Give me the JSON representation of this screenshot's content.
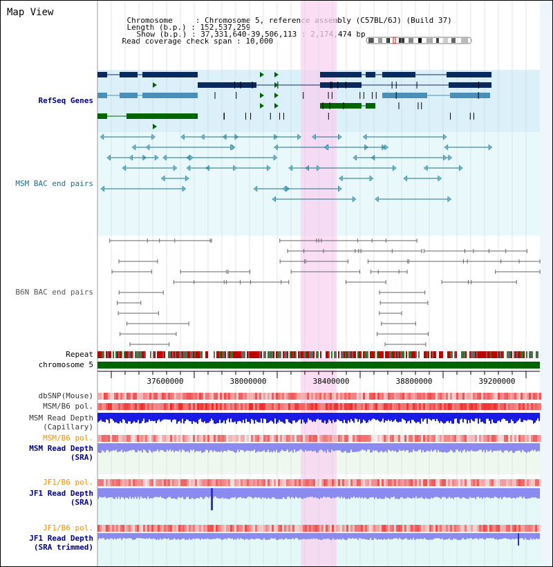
{
  "view_title": "Map View",
  "info": {
    "chromosome_label": "Chromosome",
    "chromosome_value": "Chromosome 5, reference assembly (C57BL/6J) (Build 37)",
    "length_label": "Length (b.p.)",
    "length_value": "152,537,259",
    "show_label": "Show (b.p.)",
    "show_value": "37,331,640-39,506,113 : 2,174,474 bp",
    "coverage_label": "Read coverage check span",
    "coverage_value": "10,000"
  },
  "tracks": {
    "refseq": "RefSeq Genes",
    "msm_bac": "MSM BAC end pairs",
    "b6n_bac": "B6N BAC end pairs",
    "repeat": "Repeat",
    "chromosome": "chromosome 5",
    "dbsnp": "dbSNP(Mouse)",
    "msm_b6_pol_1": "MSM/B6 pol.",
    "msm_read_depth_cap": "MSM Read Depth",
    "capillary": "(Capillary)",
    "msm_b6_pol_2": "MSM/B6 pol.",
    "msm_read_depth_sra": "MSM Read Depth",
    "sra_1": "(SRA)",
    "jf1_b6_pol_1": "JF1/B6 pol.",
    "jf1_read_depth_sra": "JF1 Read Depth",
    "sra_2": "(SRA)",
    "jf1_b6_pol_2": "JF1/B6 pol.",
    "jf1_read_depth_trim": "JF1 Read Depth",
    "sra_trimmed": "(SRA trimmed)"
  },
  "axis_ticks": [
    "37600000",
    "38000000",
    "38400000",
    "38800000",
    "39200000"
  ],
  "colors": {
    "refseq_bg": "#dcf0fa",
    "gene_dark": "#0a2a5e",
    "gene_mid": "#4a8fb8",
    "gene_green": "#006400",
    "msm_bac": "#1b6f86",
    "b6n_bac": "#666666",
    "highlight": "#fad2f0",
    "depth_blue": "#1a1ae6",
    "depth_light": "#8a8af0",
    "pol_red": "#f04040",
    "label_orange": "#e89010",
    "label_navy": "#000080"
  }
}
